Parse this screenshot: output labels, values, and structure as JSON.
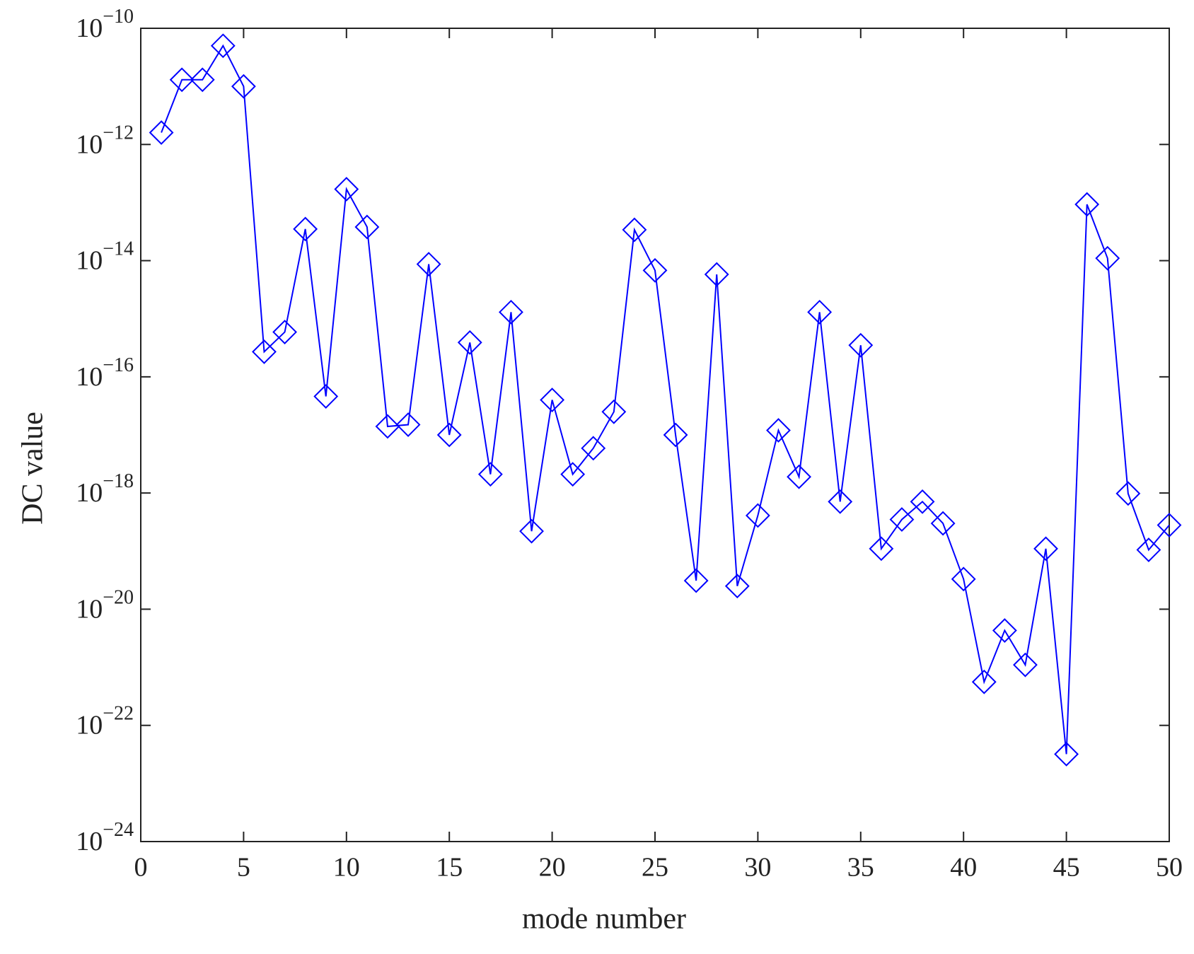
{
  "chart_data": {
    "type": "line",
    "x_label": "mode number",
    "y_label": "DC value",
    "log_scale_y": true,
    "grid": false,
    "marker": "diamond",
    "color": "#0000ff",
    "x": [
      1,
      2,
      3,
      4,
      5,
      6,
      7,
      8,
      9,
      10,
      11,
      12,
      13,
      14,
      15,
      16,
      17,
      18,
      19,
      20,
      21,
      22,
      23,
      24,
      25,
      26,
      27,
      28,
      29,
      30,
      31,
      32,
      33,
      34,
      35,
      36,
      37,
      38,
      39,
      40,
      41,
      42,
      43,
      44,
      45,
      46,
      47,
      48,
      49,
      50
    ],
    "values": [
      1.6e-12,
      1.3e-11,
      1.3e-11,
      5e-11,
      1e-11,
      2.7e-16,
      5.9e-16,
      3.5e-14,
      4.6e-17,
      1.7e-13,
      3.8e-14,
      1.4e-17,
      1.5e-17,
      8.7e-15,
      1e-17,
      3.9e-16,
      2.1e-18,
      1.3e-15,
      2.2e-19,
      4e-17,
      2.1e-18,
      5.9e-18,
      2.5e-17,
      3.4e-14,
      6.8e-15,
      1e-17,
      3.1e-20,
      5.8e-15,
      2.5e-20,
      4.1e-19,
      1.2e-17,
      1.9e-18,
      1.3e-15,
      7.1e-19,
      3.5e-16,
      1.1e-19,
      3.5e-19,
      7.1e-19,
      3e-19,
      3.3e-20,
      5.6e-22,
      4.3e-21,
      1.1e-21,
      1.1e-19,
      3.2e-23,
      9.3e-14,
      1.1e-14,
      9.8e-19,
      1.05e-19,
      2.8e-19
    ],
    "xlim": [
      0,
      50
    ],
    "xticks": [
      0,
      5,
      10,
      15,
      20,
      25,
      30,
      35,
      40,
      45,
      50
    ],
    "ylim": [
      1e-24,
      1e-10
    ],
    "yticks": [
      {
        "value": 1e-24,
        "label": "10−24"
      },
      {
        "value": 1e-22,
        "label": "10−22"
      },
      {
        "value": 1e-20,
        "label": "10−20"
      },
      {
        "value": 1e-18,
        "label": "10−18"
      },
      {
        "value": 1e-16,
        "label": "10−16"
      },
      {
        "value": 1e-14,
        "label": "10−14"
      },
      {
        "value": 1e-12,
        "label": "10−12"
      },
      {
        "value": 1e-10,
        "label": "10−10"
      }
    ]
  }
}
